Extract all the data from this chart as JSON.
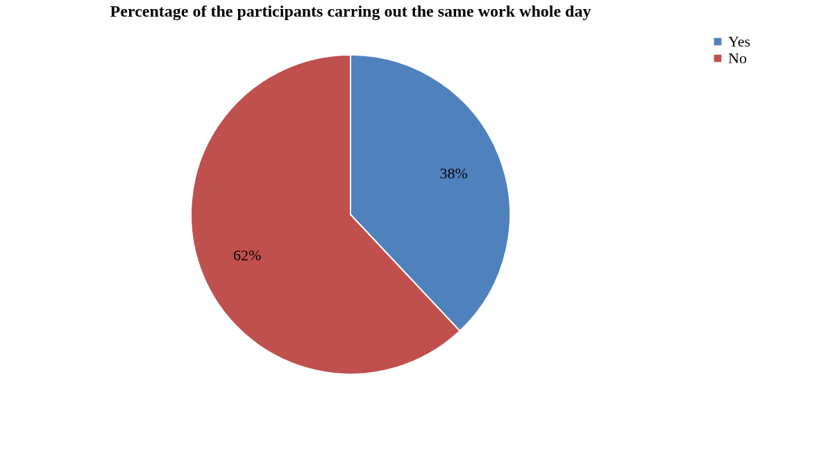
{
  "chart_data": {
    "type": "pie",
    "title": "Percentage of the participants carring out the same work whole day",
    "categories": [
      "Yes",
      "No"
    ],
    "values": [
      38,
      62
    ],
    "colors": [
      "#4f81bd",
      "#c0504d"
    ],
    "value_labels": [
      "38%",
      "62%"
    ],
    "legend": "right"
  }
}
